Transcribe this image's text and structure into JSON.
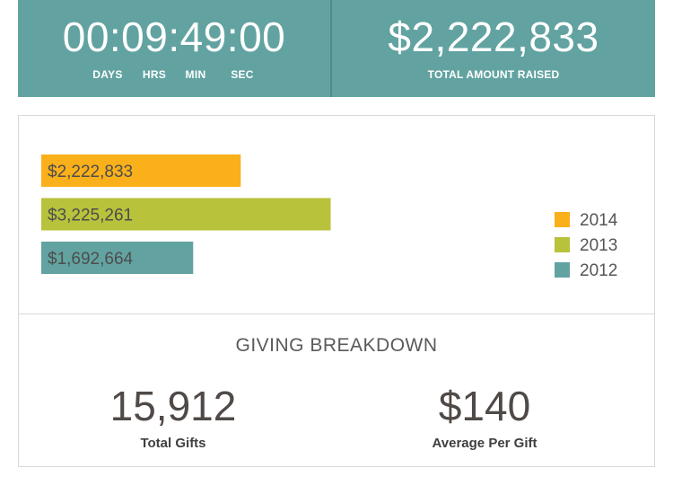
{
  "header": {
    "countdown": {
      "value": "00:09:49:00",
      "units": [
        "DAYS",
        "HRS",
        "MIN",
        "SEC"
      ]
    },
    "total": {
      "value": "$2,222,833",
      "label": "TOTAL AMOUNT RAISED"
    },
    "colors": {
      "background": "#62a3a1",
      "divider": "#4e8b89"
    }
  },
  "chart_data": {
    "type": "bar",
    "orientation": "horizontal",
    "categories": [
      "2014",
      "2013",
      "2012"
    ],
    "values": [
      2222833,
      3225261,
      1692664
    ],
    "labels": [
      "$2,222,833",
      "$3,225,261",
      "$1,692,664"
    ],
    "colors": [
      "#fab01a",
      "#b8c23b",
      "#62a3a1"
    ],
    "legend": {
      "placement": "right",
      "entries": [
        "2014",
        "2013",
        "2012"
      ]
    },
    "grid": false,
    "xlim": [
      0,
      6500000
    ]
  },
  "breakdown": {
    "title": "GIVING BREAKDOWN",
    "total_gifts": {
      "value": "15,912",
      "label": "Total Gifts"
    },
    "average_gift": {
      "value": "$140",
      "label": "Average Per Gift"
    }
  }
}
